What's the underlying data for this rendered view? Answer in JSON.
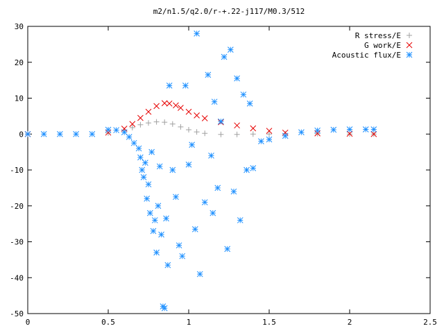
{
  "chart_data": {
    "type": "scatter",
    "title": "m2/n1.5/q2.0/r-+.22-j117/M0.3/512",
    "xlabel": "",
    "ylabel": "",
    "xlim": [
      0,
      2.5
    ],
    "ylim": [
      -50,
      30
    ],
    "x_ticks": [
      "0",
      "0.5",
      "1",
      "1.5",
      "2",
      "2.5"
    ],
    "y_ticks": [
      "30",
      "20",
      "10",
      "0",
      "-10",
      "-20",
      "-30",
      "-40",
      "-50"
    ],
    "grid": false,
    "legend_position": "top-right",
    "series": [
      {
        "name": "R stress/E",
        "marker": "plus",
        "color": "#a0a0a0",
        "x": [
          0.0,
          0.5,
          0.6,
          0.65,
          0.7,
          0.75,
          0.8,
          0.85,
          0.9,
          0.95,
          1.0,
          1.05,
          1.1,
          1.2,
          1.3,
          1.4,
          1.5,
          1.6,
          1.8,
          2.0,
          2.15
        ],
        "y": [
          0.0,
          0.3,
          1.0,
          1.8,
          2.6,
          3.1,
          3.4,
          3.3,
          2.8,
          2.0,
          1.2,
          0.6,
          0.2,
          -0.1,
          -0.1,
          0.0,
          0.0,
          0.1,
          0.1,
          0.0,
          0.0
        ]
      },
      {
        "name": "G work/E",
        "marker": "cross",
        "color": "#e60000",
        "x": [
          0.0,
          0.5,
          0.6,
          0.65,
          0.7,
          0.75,
          0.8,
          0.85,
          0.88,
          0.92,
          0.95,
          1.0,
          1.05,
          1.1,
          1.2,
          1.3,
          1.4,
          1.5,
          1.6,
          1.8,
          2.0,
          2.15
        ],
        "y": [
          0.0,
          0.4,
          1.5,
          2.8,
          4.5,
          6.2,
          7.8,
          8.6,
          8.5,
          8.0,
          7.3,
          6.2,
          5.2,
          4.4,
          3.3,
          2.4,
          1.6,
          0.9,
          0.4,
          0.2,
          0.1,
          0.0
        ]
      },
      {
        "name": "Acoustic flux/E",
        "marker": "star",
        "color": "#1e90ff",
        "x": [
          0.0,
          0.1,
          0.2,
          0.3,
          0.4,
          0.5,
          0.55,
          0.6,
          0.63,
          0.66,
          0.69,
          0.7,
          0.71,
          0.72,
          0.73,
          0.74,
          0.75,
          0.76,
          0.77,
          0.78,
          0.79,
          0.8,
          0.81,
          0.82,
          0.83,
          0.84,
          0.85,
          0.86,
          0.87,
          0.88,
          0.9,
          0.92,
          0.94,
          0.96,
          0.98,
          1.0,
          1.02,
          1.04,
          1.05,
          1.07,
          1.1,
          1.12,
          1.14,
          1.15,
          1.16,
          1.18,
          1.2,
          1.22,
          1.24,
          1.26,
          1.28,
          1.3,
          1.32,
          1.34,
          1.36,
          1.38,
          1.4,
          1.45,
          1.5,
          1.6,
          1.7,
          1.8,
          1.9,
          2.0,
          2.1,
          2.15
        ],
        "y": [
          0.0,
          0.0,
          0.0,
          0.0,
          0.0,
          1.2,
          1.1,
          0.5,
          -0.8,
          -2.5,
          -4.0,
          -6.5,
          -10.0,
          -12.0,
          -8.0,
          -18.0,
          -14.0,
          -22.0,
          -5.0,
          -27.0,
          -24.0,
          -33.0,
          -20.0,
          -9.0,
          -28.0,
          -48.0,
          -48.5,
          -23.5,
          -36.5,
          13.5,
          -10.0,
          -17.5,
          -31.0,
          -34.0,
          13.5,
          -8.5,
          -3.0,
          -26.5,
          28.0,
          -39.0,
          -19.0,
          16.5,
          -6.0,
          -22.0,
          9.0,
          -15.0,
          3.5,
          21.5,
          -32.0,
          23.5,
          -16.0,
          15.5,
          -24.0,
          11.0,
          -10.0,
          8.5,
          -9.5,
          -2.0,
          -1.5,
          -0.5,
          0.5,
          1.0,
          1.2,
          1.3,
          1.3,
          1.3
        ]
      }
    ]
  }
}
